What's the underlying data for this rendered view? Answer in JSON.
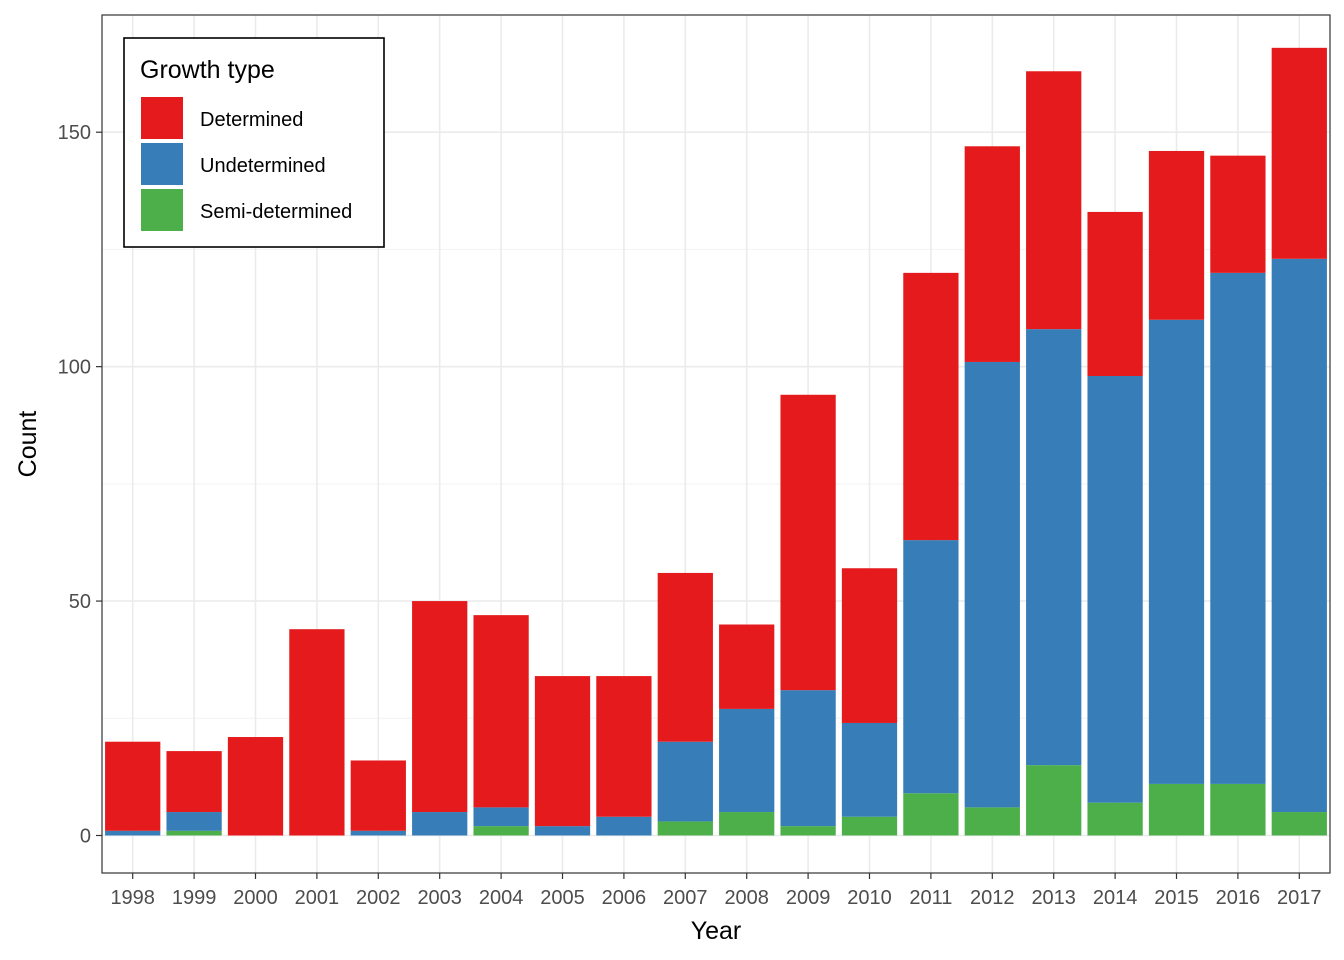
{
  "chart_data": {
    "type": "bar",
    "stacked": true,
    "xlabel": "Year",
    "ylabel": "Count",
    "ylim": [
      -8,
      175
    ],
    "y_ticks": [
      0,
      50,
      100,
      150
    ],
    "grid": true,
    "legend": {
      "title": "Growth type",
      "position": "top-left inside"
    },
    "categories": [
      "1998",
      "1999",
      "2000",
      "2001",
      "2002",
      "2003",
      "2004",
      "2005",
      "2006",
      "2007",
      "2008",
      "2009",
      "2010",
      "2011",
      "2012",
      "2013",
      "2014",
      "2015",
      "2016",
      "2017"
    ],
    "series": [
      {
        "name": "Semi-determined",
        "color": "#4DAF4A",
        "values": [
          0,
          1,
          0,
          0,
          0,
          0,
          2,
          0,
          0,
          3,
          5,
          2,
          4,
          9,
          6,
          15,
          7,
          11,
          11,
          5
        ]
      },
      {
        "name": "Undetermined",
        "color": "#377EB8",
        "values": [
          1,
          4,
          0,
          0,
          1,
          5,
          4,
          2,
          4,
          17,
          22,
          29,
          20,
          54,
          95,
          93,
          91,
          99,
          109,
          118
        ]
      },
      {
        "name": "Determined",
        "color": "#E41A1C",
        "values": [
          19,
          13,
          21,
          44,
          15,
          45,
          41,
          32,
          30,
          36,
          18,
          63,
          33,
          57,
          46,
          55,
          35,
          36,
          25,
          45
        ]
      }
    ],
    "legend_order": [
      "Determined",
      "Undetermined",
      "Semi-determined"
    ]
  }
}
